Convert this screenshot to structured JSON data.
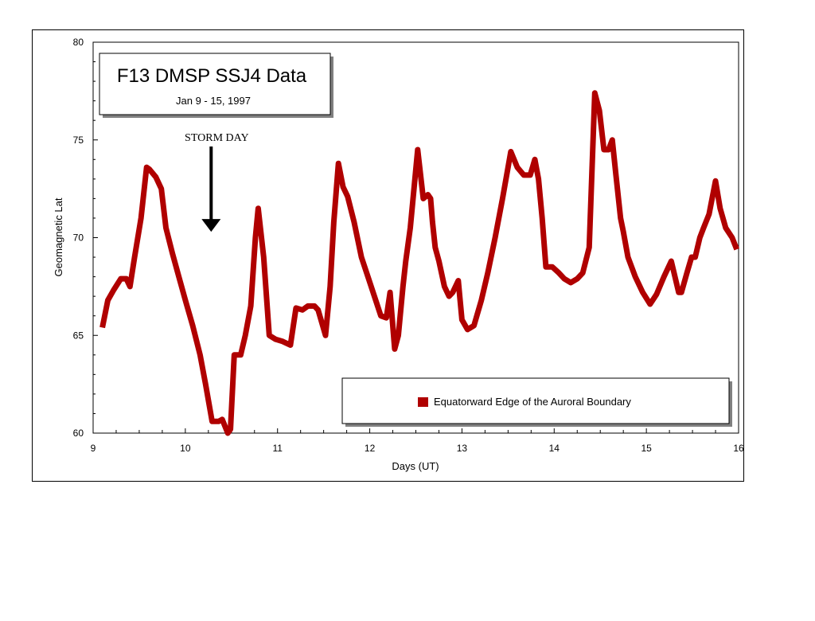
{
  "chart_data": {
    "type": "line",
    "title": "F13 DMSP SSJ4 Data",
    "subtitle": "Jan 9 - 15, 1997",
    "xlabel": "Days (UT)",
    "ylabel": "Geomagnetic Lat",
    "xlim": [
      9,
      16
    ],
    "ylim": [
      60,
      80
    ],
    "xticks": [
      9,
      10,
      11,
      12,
      13,
      14,
      15,
      16
    ],
    "yticks": [
      60,
      65,
      70,
      75,
      80
    ],
    "grid": false,
    "legend_position": "bottom-right",
    "annotation": {
      "text": "STORM DAY",
      "x": 10.28,
      "arrow_to_y": 70.3
    },
    "series": [
      {
        "name": "Equatorward Edge of  the Auroral Boundary",
        "color": "#b00000",
        "x": [
          9.1,
          9.16,
          9.22,
          9.3,
          9.36,
          9.4,
          9.45,
          9.52,
          9.58,
          9.61,
          9.68,
          9.74,
          9.79,
          9.86,
          9.93,
          10.0,
          10.08,
          10.16,
          10.22,
          10.29,
          10.36,
          10.4,
          10.46,
          10.49,
          10.53,
          10.6,
          10.65,
          10.71,
          10.76,
          10.79,
          10.85,
          10.91,
          10.98,
          11.05,
          11.14,
          11.2,
          11.27,
          11.33,
          11.4,
          11.44,
          11.52,
          11.57,
          11.61,
          11.66,
          11.71,
          11.76,
          11.83,
          11.91,
          11.98,
          12.05,
          12.12,
          12.18,
          12.22,
          12.27,
          12.31,
          12.36,
          12.39,
          12.44,
          12.52,
          12.58,
          12.63,
          12.66,
          12.68,
          12.71,
          12.75,
          12.81,
          12.86,
          12.9,
          12.96,
          13.0,
          13.06,
          13.13,
          13.21,
          13.28,
          13.36,
          13.44,
          13.53,
          13.6,
          13.67,
          13.74,
          13.79,
          13.83,
          13.87,
          13.91,
          13.98,
          14.05,
          14.11,
          14.18,
          14.25,
          14.31,
          14.38,
          14.44,
          14.49,
          14.54,
          14.59,
          14.63,
          14.67,
          14.72,
          14.75,
          14.8,
          14.88,
          14.96,
          15.04,
          15.11,
          15.19,
          15.27,
          15.35,
          15.38,
          15.44,
          15.49,
          15.53,
          15.58,
          15.62,
          15.68,
          15.75,
          15.8,
          15.86,
          15.93,
          15.98
        ],
        "values": [
          65.4,
          66.8,
          67.3,
          67.9,
          67.9,
          67.5,
          69.0,
          71.0,
          73.6,
          73.5,
          73.1,
          72.5,
          70.5,
          69.2,
          68.0,
          66.8,
          65.5,
          64.0,
          62.5,
          60.6,
          60.6,
          60.7,
          60.0,
          60.2,
          64.0,
          64.0,
          65.0,
          66.5,
          70.0,
          71.5,
          69.0,
          65.0,
          64.8,
          64.7,
          64.5,
          66.4,
          66.3,
          66.5,
          66.5,
          66.3,
          65.0,
          67.5,
          70.8,
          73.8,
          72.6,
          72.1,
          70.8,
          69.0,
          68.0,
          67.0,
          66.0,
          65.9,
          67.2,
          64.3,
          65.0,
          67.5,
          68.8,
          70.5,
          74.5,
          72.0,
          72.2,
          72.0,
          70.8,
          69.5,
          68.8,
          67.5,
          67.0,
          67.2,
          67.8,
          65.8,
          65.3,
          65.5,
          66.8,
          68.2,
          70.0,
          72.0,
          74.4,
          73.6,
          73.2,
          73.2,
          74.0,
          73.0,
          71.0,
          68.5,
          68.5,
          68.2,
          67.9,
          67.7,
          67.9,
          68.2,
          69.5,
          77.4,
          76.5,
          74.5,
          74.5,
          75.0,
          73.2,
          71.0,
          70.3,
          69.0,
          68.0,
          67.2,
          66.6,
          67.1,
          68.0,
          68.8,
          67.2,
          67.2,
          68.2,
          69.0,
          69.0,
          70.0,
          70.5,
          71.2,
          72.9,
          71.5,
          70.5,
          70.0,
          69.4
        ]
      }
    ]
  }
}
